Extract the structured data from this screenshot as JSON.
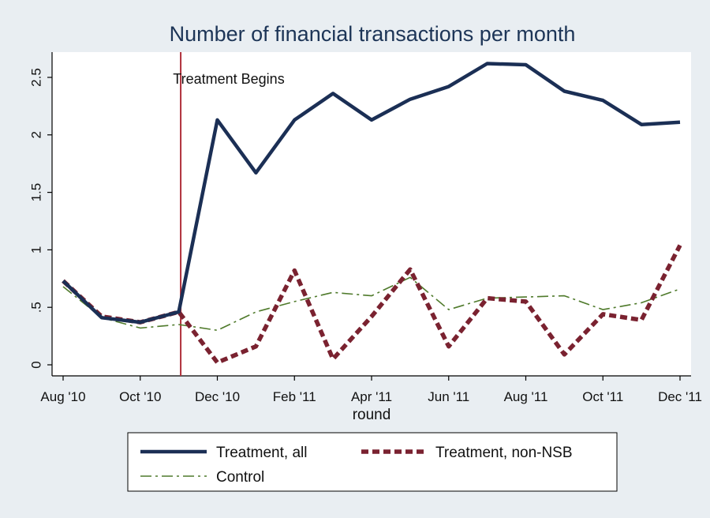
{
  "chart_data": {
    "type": "line",
    "title": "Number of financial transactions per month",
    "xlabel": "round",
    "ylabel": "",
    "x_tick_labels": [
      "Aug '10",
      "Oct '10",
      "Dec '10",
      "Feb '11",
      "Apr '11",
      "Jun '11",
      "Aug '11",
      "Oct '11",
      "Dec '11"
    ],
    "x_tick_positions": [
      0,
      2,
      4,
      6,
      8,
      10,
      12,
      14,
      16
    ],
    "y_tick_labels": [
      "0",
      ".5",
      "1",
      "1.5",
      "2",
      "2.5"
    ],
    "y_tick_values": [
      0,
      0.5,
      1,
      1.5,
      2,
      2.5
    ],
    "xlim": [
      0,
      16
    ],
    "ylim": [
      0,
      2.65
    ],
    "x": [
      0,
      1,
      2,
      3,
      4,
      5,
      6,
      7,
      8,
      9,
      10,
      11,
      12,
      13,
      14,
      15,
      16
    ],
    "series": [
      {
        "name": "Treatment, all",
        "color": "#1b2f55",
        "style": "solid",
        "values": [
          0.73,
          0.41,
          0.37,
          0.46,
          2.13,
          1.67,
          2.13,
          2.36,
          2.13,
          2.31,
          2.42,
          2.62,
          2.61,
          2.38,
          2.3,
          2.09,
          2.11
        ]
      },
      {
        "name": "Treatment, non-NSB",
        "color": "#7a2230",
        "style": "dash",
        "values": [
          0.73,
          0.42,
          0.37,
          0.46,
          0.02,
          0.16,
          0.82,
          0.05,
          0.42,
          0.83,
          0.16,
          0.58,
          0.55,
          0.09,
          0.44,
          0.39,
          1.04
        ]
      },
      {
        "name": "Control",
        "color": "#4f7a2b",
        "style": "dashdot",
        "values": [
          0.68,
          0.41,
          0.32,
          0.35,
          0.3,
          0.46,
          0.55,
          0.63,
          0.6,
          0.76,
          0.48,
          0.58,
          0.59,
          0.6,
          0.48,
          0.54,
          0.66
        ]
      }
    ],
    "annotation": {
      "label": "Treatment Begins",
      "x": 3.05,
      "color": "#b0303a"
    },
    "grid": false,
    "legend_position": "bottom"
  }
}
